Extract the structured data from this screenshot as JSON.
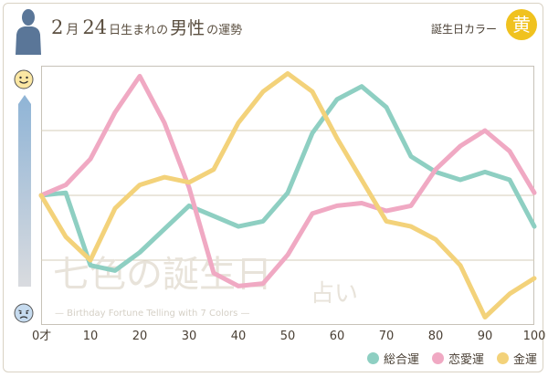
{
  "header": {
    "month": "2",
    "month_unit": "月",
    "day": "24",
    "title_rest_a": "日生まれの",
    "title_rest_b": "男性",
    "title_rest_c": "の運勢",
    "birthday_color_label": "誕生日カラー",
    "birthday_color_char": "黄"
  },
  "colors": {
    "overall": "#8ecfc2",
    "love": "#f0a9c3",
    "money": "#f3d27a",
    "badge": "#f0c21f"
  },
  "watermark": {
    "main": "七色の誕生日",
    "sub": "占い",
    "caption": "— Birthday Fortune Telling with 7 Colors —"
  },
  "chart_data": {
    "type": "line",
    "title": "2月24日生まれの男性の運勢",
    "xlabel": "",
    "ylabel": "",
    "x_axis": {
      "ticks": [
        0,
        10,
        20,
        30,
        40,
        50,
        60,
        70,
        80,
        90,
        100
      ],
      "tick_labels": [
        "0才",
        "10",
        "20",
        "30",
        "40",
        "50",
        "60",
        "70",
        "80",
        "90",
        "100"
      ],
      "range": [
        0,
        100
      ]
    },
    "y_axis": {
      "range": [
        0,
        100
      ],
      "top_icon": "smiley-face-icon",
      "bottom_icon": "worried-face-icon"
    },
    "grid": "horizontal",
    "legend_position": "bottom-right",
    "x": [
      0,
      5,
      10,
      15,
      20,
      25,
      30,
      35,
      40,
      45,
      50,
      55,
      60,
      65,
      70,
      75,
      80,
      85,
      90,
      95,
      100
    ],
    "series": [
      {
        "name": "総合運",
        "key": "overall",
        "values": [
          50,
          51,
          23,
          21,
          28,
          37,
          46,
          42,
          38,
          40,
          51,
          74,
          87,
          92,
          84,
          65,
          59,
          56,
          59,
          56,
          38
        ]
      },
      {
        "name": "恋愛運",
        "key": "love",
        "values": [
          50,
          54,
          64,
          82,
          96,
          78,
          53,
          20,
          15,
          16,
          27,
          43,
          46,
          47,
          44,
          46,
          60,
          69,
          75,
          67,
          51
        ]
      },
      {
        "name": "金運",
        "key": "money",
        "values": [
          50,
          34,
          25,
          45,
          54,
          57,
          55,
          60,
          78,
          90,
          97,
          90,
          72,
          56,
          40,
          38,
          33,
          23,
          3,
          12,
          18
        ]
      }
    ]
  }
}
